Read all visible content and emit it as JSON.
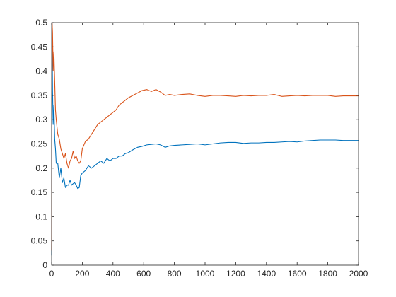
{
  "chart_data": {
    "type": "line",
    "title": "",
    "xlabel": "",
    "ylabel": "",
    "xlim": [
      0,
      2000
    ],
    "ylim": [
      0,
      0.5
    ],
    "grid": false,
    "x_ticks": [
      0,
      200,
      400,
      600,
      800,
      1000,
      1200,
      1400,
      1600,
      1800,
      2000
    ],
    "x_tick_labels": [
      "0",
      "200",
      "400",
      "600",
      "800",
      "1000",
      "1200",
      "1400",
      "1600",
      "1800",
      "2000"
    ],
    "y_ticks": [
      0,
      0.05,
      0.1,
      0.15,
      0.2,
      0.25,
      0.3,
      0.35,
      0.4,
      0.45,
      0.5
    ],
    "y_tick_labels": [
      "0",
      "0.05",
      "0.1",
      "0.15",
      "0.2",
      "0.25",
      "0.3",
      "0.35",
      "0.4",
      "0.45",
      "0.5"
    ],
    "series": [
      {
        "color": "#0072BD",
        "x": [
          0,
          3,
          6,
          10,
          15,
          20,
          25,
          30,
          40,
          50,
          60,
          70,
          80,
          90,
          100,
          110,
          120,
          130,
          140,
          150,
          160,
          170,
          180,
          190,
          200,
          220,
          240,
          260,
          280,
          300,
          320,
          340,
          360,
          380,
          400,
          420,
          440,
          460,
          480,
          500,
          530,
          560,
          590,
          620,
          650,
          680,
          710,
          740,
          770,
          800,
          850,
          900,
          950,
          1000,
          1050,
          1100,
          1150,
          1200,
          1250,
          1300,
          1350,
          1400,
          1450,
          1500,
          1550,
          1600,
          1650,
          1700,
          1750,
          1800,
          1850,
          1900,
          1950,
          2000
        ],
        "y": [
          0.02,
          0.5,
          0.36,
          0.29,
          0.33,
          0.26,
          0.24,
          0.21,
          0.21,
          0.18,
          0.2,
          0.17,
          0.18,
          0.16,
          0.165,
          0.165,
          0.175,
          0.165,
          0.168,
          0.17,
          0.165,
          0.158,
          0.16,
          0.185,
          0.19,
          0.195,
          0.205,
          0.2,
          0.205,
          0.21,
          0.215,
          0.21,
          0.22,
          0.215,
          0.22,
          0.22,
          0.225,
          0.225,
          0.23,
          0.232,
          0.238,
          0.243,
          0.245,
          0.248,
          0.249,
          0.25,
          0.248,
          0.243,
          0.246,
          0.247,
          0.248,
          0.249,
          0.25,
          0.248,
          0.25,
          0.252,
          0.253,
          0.253,
          0.251,
          0.252,
          0.252,
          0.253,
          0.253,
          0.254,
          0.255,
          0.254,
          0.256,
          0.257,
          0.258,
          0.258,
          0.258,
          0.257,
          0.257,
          0.257
        ]
      },
      {
        "color": "#D95319",
        "x": [
          0,
          3,
          6,
          10,
          15,
          20,
          25,
          30,
          40,
          50,
          60,
          70,
          80,
          90,
          100,
          110,
          120,
          130,
          140,
          150,
          160,
          170,
          180,
          190,
          200,
          220,
          240,
          260,
          280,
          300,
          320,
          340,
          360,
          380,
          400,
          420,
          440,
          460,
          480,
          500,
          530,
          560,
          590,
          620,
          650,
          680,
          710,
          740,
          770,
          800,
          850,
          900,
          950,
          1000,
          1050,
          1100,
          1150,
          1200,
          1250,
          1300,
          1350,
          1400,
          1450,
          1500,
          1550,
          1600,
          1650,
          1700,
          1750,
          1800,
          1850,
          1900,
          1950,
          2000
        ],
        "y": [
          0.03,
          0.5,
          0.48,
          0.4,
          0.44,
          0.38,
          0.32,
          0.3,
          0.27,
          0.26,
          0.24,
          0.23,
          0.22,
          0.23,
          0.21,
          0.2,
          0.215,
          0.22,
          0.235,
          0.22,
          0.225,
          0.215,
          0.21,
          0.215,
          0.24,
          0.255,
          0.26,
          0.27,
          0.28,
          0.29,
          0.295,
          0.3,
          0.305,
          0.31,
          0.315,
          0.32,
          0.33,
          0.335,
          0.34,
          0.345,
          0.35,
          0.355,
          0.36,
          0.362,
          0.358,
          0.362,
          0.357,
          0.35,
          0.352,
          0.35,
          0.352,
          0.353,
          0.35,
          0.348,
          0.35,
          0.35,
          0.349,
          0.348,
          0.35,
          0.349,
          0.35,
          0.35,
          0.352,
          0.348,
          0.349,
          0.35,
          0.349,
          0.35,
          0.35,
          0.35,
          0.348,
          0.349,
          0.349,
          0.349
        ]
      }
    ]
  }
}
